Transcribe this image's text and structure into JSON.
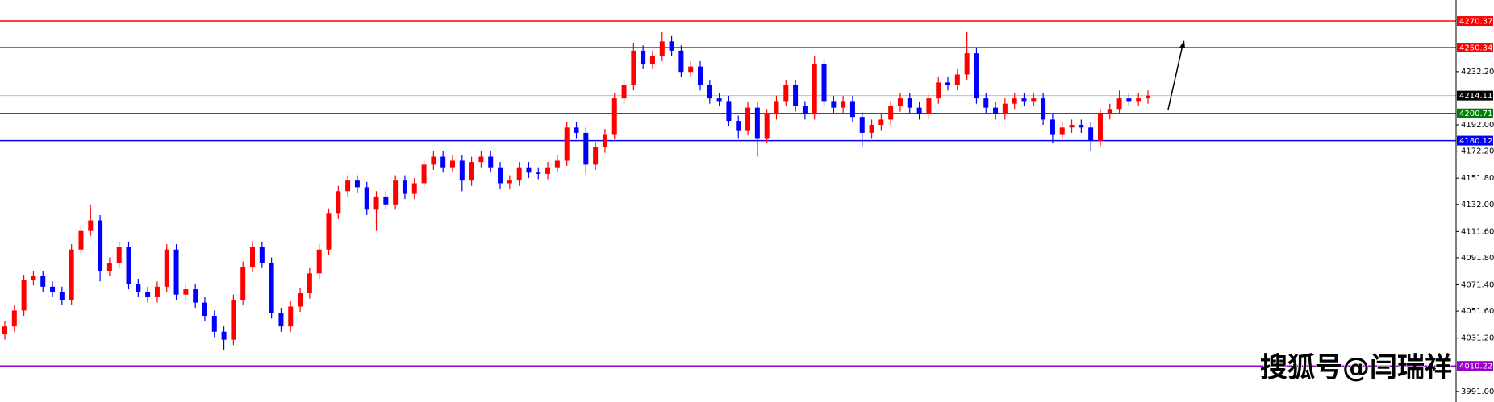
{
  "chart_data": {
    "type": "candlestick",
    "up_color": "#ff0000",
    "down_color": "#0000ff",
    "ylim": [
      3983,
      4286.2
    ],
    "yticks": [
      {
        "value": 4232.2,
        "label": "4232.20"
      },
      {
        "value": 4192,
        "label": "4192.00"
      },
      {
        "value": 4172.2,
        "label": "4172.20"
      },
      {
        "value": 4151.8,
        "label": "4151.80"
      },
      {
        "value": 4132,
        "label": "4132.00"
      },
      {
        "value": 4111.6,
        "label": "4111.60"
      },
      {
        "value": 4091.8,
        "label": "4091.80"
      },
      {
        "value": 4071.4,
        "label": "4071.40"
      },
      {
        "value": 4051.6,
        "label": "4051.60"
      },
      {
        "value": 4031.2,
        "label": "4031.20"
      },
      {
        "value": 3991,
        "label": "3991.00"
      }
    ],
    "levels": [
      {
        "value": 4270.37,
        "color": "#ff0000"
      },
      {
        "value": 4250.34,
        "color": "#ff0000"
      },
      {
        "value": 4214.11,
        "color": "#c0c0c0"
      },
      {
        "value": 4200.71,
        "color": "#008000"
      },
      {
        "value": 4180.12,
        "color": "#0000ff"
      },
      {
        "value": 4010.22,
        "color": "#9900cc"
      }
    ],
    "watermark": "搜狐号@闫瑞祥",
    "open": [
      4034,
      4040,
      4052,
      4075,
      4078,
      4070,
      4066,
      4060,
      4098,
      4112,
      4120,
      4082,
      4088,
      4100,
      4072,
      4066,
      4062,
      4070,
      4098,
      4064,
      4068,
      4058,
      4048,
      4036,
      4030,
      4060,
      4085,
      4100,
      4088,
      4050,
      4040,
      4055,
      4065,
      4080,
      4098,
      4125,
      4142,
      4150,
      4145,
      4128,
      4138,
      4132,
      4150,
      4140,
      4148,
      4162,
      4168,
      4160,
      4165,
      4150,
      4164,
      4168,
      4160,
      4148,
      4150,
      4160,
      4156,
      4155,
      4160,
      4165,
      4190,
      4186,
      4162,
      4175,
      4185,
      4212,
      4222,
      4248,
      4238,
      4244,
      4255,
      4248,
      4232,
      4236,
      4222,
      4212,
      4210,
      4195,
      4188,
      4205,
      4182,
      4200,
      4210,
      4222,
      4206,
      4200,
      4238,
      4210,
      4205,
      4210,
      4198,
      4186,
      4192,
      4196,
      4206,
      4212,
      4205,
      4200,
      4212,
      4224,
      4222,
      4230,
      4246,
      4212,
      4205,
      4200,
      4208,
      4212,
      4210,
      4212,
      4196,
      4185,
      4190,
      4192,
      4190,
      4180,
      4200,
      4204,
      4212,
      4210,
      4212
    ],
    "high": [
      4044,
      4056,
      4079,
      4082,
      4082,
      4074,
      4070,
      4102,
      4116,
      4132,
      4124,
      4092,
      4104,
      4104,
      4076,
      4070,
      4074,
      4102,
      4102,
      4072,
      4072,
      4062,
      4052,
      4040,
      4064,
      4089,
      4104,
      4104,
      4092,
      4054,
      4059,
      4069,
      4084,
      4102,
      4129,
      4146,
      4154,
      4154,
      4149,
      4142,
      4142,
      4154,
      4154,
      4152,
      4166,
      4172,
      4172,
      4169,
      4169,
      4168,
      4172,
      4172,
      4164,
      4154,
      4164,
      4164,
      4160,
      4164,
      4169,
      4194,
      4194,
      4190,
      4179,
      4189,
      4216,
      4226,
      4254,
      4252,
      4248,
      4262,
      4259,
      4252,
      4240,
      4240,
      4226,
      4216,
      4214,
      4199,
      4209,
      4209,
      4204,
      4214,
      4226,
      4226,
      4210,
      4244,
      4242,
      4214,
      4214,
      4214,
      4202,
      4196,
      4200,
      4210,
      4216,
      4216,
      4209,
      4216,
      4228,
      4228,
      4234,
      4262,
      4250,
      4216,
      4209,
      4212,
      4216,
      4216,
      4216,
      4216,
      4200,
      4194,
      4196,
      4196,
      4194,
      4204,
      4208,
      4218,
      4216,
      4216,
      4218
    ],
    "low": [
      4030,
      4036,
      4048,
      4071,
      4066,
      4062,
      4056,
      4056,
      4094,
      4108,
      4074,
      4078,
      4084,
      4068,
      4062,
      4058,
      4058,
      4066,
      4060,
      4060,
      4054,
      4044,
      4032,
      4022,
      4026,
      4056,
      4081,
      4084,
      4046,
      4036,
      4036,
      4051,
      4061,
      4076,
      4094,
      4121,
      4138,
      4141,
      4124,
      4112,
      4128,
      4128,
      4136,
      4136,
      4144,
      4158,
      4156,
      4156,
      4142,
      4146,
      4160,
      4156,
      4144,
      4144,
      4146,
      4152,
      4151,
      4151,
      4156,
      4161,
      4182,
      4155,
      4158,
      4171,
      4181,
      4208,
      4218,
      4234,
      4234,
      4240,
      4244,
      4228,
      4228,
      4218,
      4208,
      4206,
      4191,
      4182,
      4184,
      4168,
      4178,
      4196,
      4206,
      4202,
      4196,
      4196,
      4206,
      4201,
      4201,
      4194,
      4176,
      4182,
      4188,
      4192,
      4202,
      4201,
      4196,
      4196,
      4208,
      4218,
      4218,
      4226,
      4208,
      4201,
      4196,
      4196,
      4204,
      4206,
      4206,
      4192,
      4178,
      4181,
      4186,
      4186,
      4172,
      4176,
      4196,
      4200,
      4206,
      4206,
      4208
    ],
    "close": [
      4040,
      4052,
      4075,
      4078,
      4070,
      4066,
      4060,
      4098,
      4112,
      4120,
      4082,
      4088,
      4100,
      4072,
      4066,
      4062,
      4070,
      4098,
      4064,
      4068,
      4058,
      4048,
      4036,
      4030,
      4060,
      4085,
      4100,
      4088,
      4050,
      4040,
      4055,
      4065,
      4080,
      4098,
      4125,
      4142,
      4150,
      4145,
      4128,
      4138,
      4132,
      4150,
      4140,
      4148,
      4162,
      4168,
      4160,
      4165,
      4150,
      4164,
      4168,
      4160,
      4148,
      4150,
      4160,
      4156,
      4155,
      4160,
      4165,
      4190,
      4186,
      4162,
      4175,
      4185,
      4212,
      4222,
      4248,
      4238,
      4244,
      4255,
      4248,
      4232,
      4236,
      4222,
      4212,
      4210,
      4195,
      4188,
      4205,
      4182,
      4200,
      4210,
      4222,
      4206,
      4200,
      4238,
      4210,
      4205,
      4210,
      4198,
      4186,
      4192,
      4196,
      4206,
      4212,
      4205,
      4200,
      4212,
      4224,
      4222,
      4230,
      4246,
      4212,
      4205,
      4200,
      4208,
      4212,
      4210,
      4212,
      4196,
      4185,
      4190,
      4192,
      4190,
      4180,
      4200,
      4204,
      4212,
      4210,
      4212,
      4214
    ]
  }
}
